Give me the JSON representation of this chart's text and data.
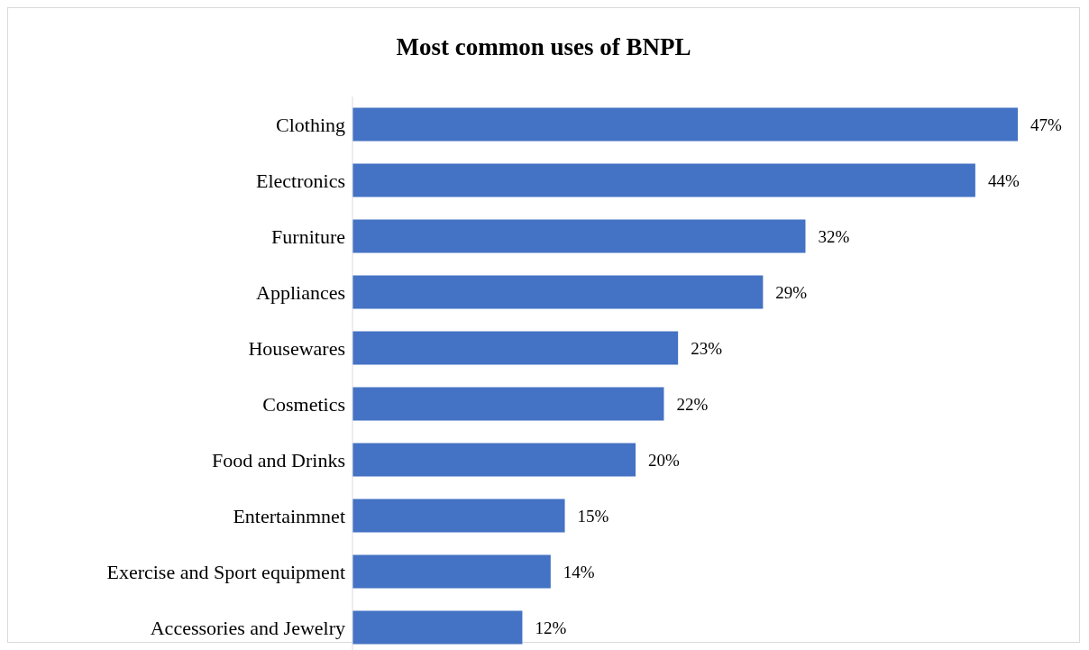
{
  "chart_data": {
    "type": "bar",
    "orientation": "horizontal",
    "title": "Most common uses of BNPL",
    "categories": [
      "Clothing",
      "Electronics",
      "Furniture",
      "Appliances",
      "Housewares",
      "Cosmetics",
      "Food and Drinks",
      "Entertainmnet",
      "Exercise and Sport equipment",
      "Accessories and Jewelry"
    ],
    "values": [
      47,
      44,
      32,
      29,
      23,
      22,
      20,
      15,
      14,
      12
    ],
    "value_labels": [
      "47%",
      "44%",
      "32%",
      "29%",
      "23%",
      "22%",
      "20%",
      "15%",
      "14%",
      "12%"
    ],
    "color": "#4472c4",
    "grid": false,
    "legend": false
  }
}
